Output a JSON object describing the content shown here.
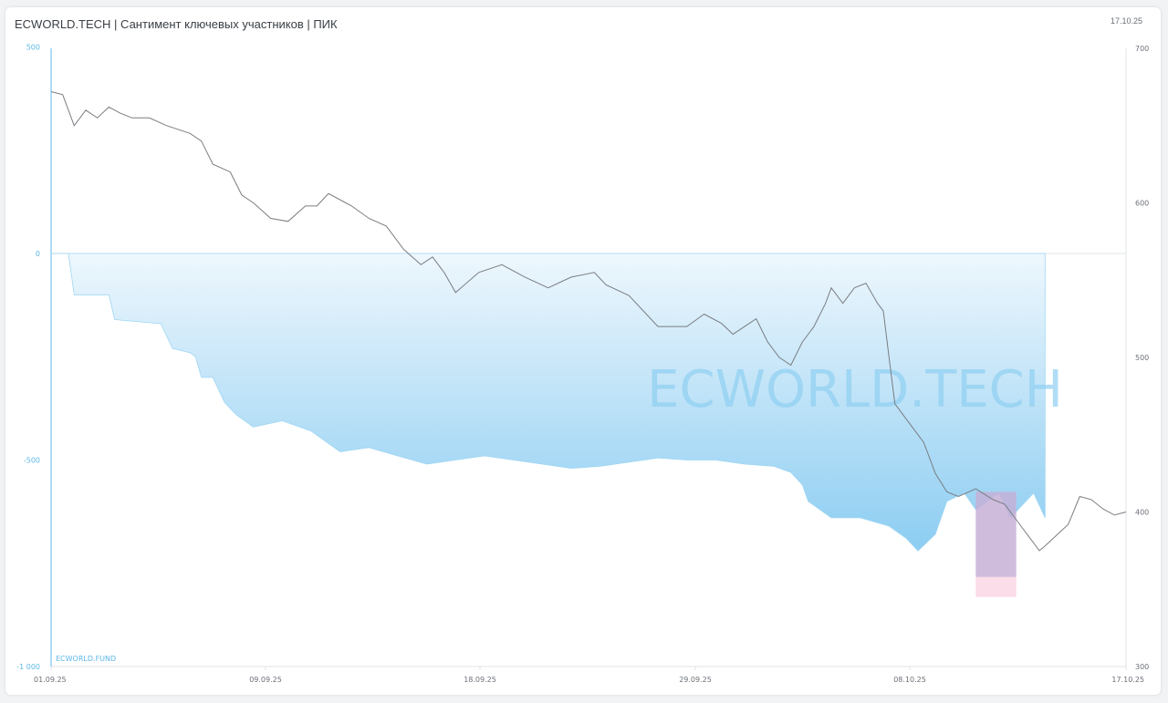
{
  "header": {
    "title": "ECWORLD.TECH | Сантимент ключевых участников | ПИК",
    "date": "17.10.25"
  },
  "watermark": "ECWORLD.TECH",
  "source_label": "ECWORLD.FUND",
  "colors": {
    "left_axis": "#5bb8e8",
    "area_fill_top": "#e9f5fc",
    "area_fill_bottom": "#8ccdf2",
    "price_line": "#7a7d82",
    "watermark": "#8fd0f2",
    "highlight_blue": "#b3a6d6",
    "highlight_pink": "#f6c6da"
  },
  "chart_data": {
    "type": "line",
    "title": "ECWORLD.TECH | Сантимент ключевых участников | ПИК",
    "x_ticks": [
      "01.09.25",
      "09.09.25",
      "18.09.25",
      "29.09.25",
      "08.10.25",
      "17.10.25"
    ],
    "y_left": {
      "ticks": [
        "500",
        "0",
        "-500",
        "-1 000"
      ],
      "range": [
        -1000,
        500
      ]
    },
    "y_right": {
      "ticks": [
        "700",
        "600",
        "500",
        "400",
        "300"
      ],
      "range": [
        300,
        700
      ]
    },
    "grid": false,
    "series": [
      {
        "kind": "area",
        "axis": "left",
        "points": [
          [
            0,
            0
          ],
          [
            3,
            0
          ],
          [
            4,
            -100
          ],
          [
            10,
            -100
          ],
          [
            11,
            -160
          ],
          [
            19,
            -170
          ],
          [
            20,
            -200
          ],
          [
            21,
            -230
          ],
          [
            24,
            -240
          ],
          [
            25,
            -250
          ],
          [
            26,
            -300
          ],
          [
            28,
            -300
          ],
          [
            30,
            -360
          ],
          [
            32,
            -390
          ],
          [
            35,
            -420
          ],
          [
            40,
            -405
          ],
          [
            45,
            -430
          ],
          [
            50,
            -480
          ],
          [
            55,
            -470
          ],
          [
            60,
            -490
          ],
          [
            65,
            -510
          ],
          [
            70,
            -500
          ],
          [
            75,
            -490
          ],
          [
            80,
            -500
          ],
          [
            85,
            -510
          ],
          [
            90,
            -520
          ],
          [
            95,
            -515
          ],
          [
            100,
            -505
          ],
          [
            105,
            -495
          ],
          [
            110,
            -500
          ],
          [
            115,
            -500
          ],
          [
            120,
            -510
          ],
          [
            125,
            -515
          ],
          [
            128,
            -530
          ],
          [
            130,
            -560
          ],
          [
            131,
            -600
          ],
          [
            135,
            -640
          ],
          [
            140,
            -640
          ],
          [
            145,
            -660
          ],
          [
            148,
            -690
          ],
          [
            150,
            -720
          ],
          [
            153,
            -680
          ],
          [
            155,
            -600
          ],
          [
            158,
            -580
          ],
          [
            160,
            -620
          ],
          [
            164,
            -580
          ],
          [
            166,
            -640
          ],
          [
            170,
            -580
          ],
          [
            172,
            -640
          ]
        ]
      },
      {
        "kind": "line",
        "axis": "right",
        "points": [
          [
            0,
            672
          ],
          [
            2,
            670
          ],
          [
            4,
            650
          ],
          [
            6,
            660
          ],
          [
            8,
            655
          ],
          [
            10,
            662
          ],
          [
            12,
            658
          ],
          [
            14,
            655
          ],
          [
            17,
            655
          ],
          [
            20,
            650
          ],
          [
            24,
            645
          ],
          [
            26,
            640
          ],
          [
            28,
            625
          ],
          [
            31,
            620
          ],
          [
            33,
            605
          ],
          [
            35,
            600
          ],
          [
            38,
            590
          ],
          [
            41,
            588
          ],
          [
            44,
            598
          ],
          [
            46,
            598
          ],
          [
            48,
            606
          ],
          [
            52,
            598
          ],
          [
            55,
            590
          ],
          [
            58,
            585
          ],
          [
            61,
            570
          ],
          [
            64,
            560
          ],
          [
            66,
            565
          ],
          [
            68,
            555
          ],
          [
            70,
            542
          ],
          [
            74,
            555
          ],
          [
            78,
            560
          ],
          [
            82,
            552
          ],
          [
            86,
            545
          ],
          [
            90,
            552
          ],
          [
            94,
            555
          ],
          [
            96,
            547
          ],
          [
            100,
            540
          ],
          [
            105,
            520
          ],
          [
            110,
            520
          ],
          [
            113,
            528
          ],
          [
            116,
            522
          ],
          [
            118,
            515
          ],
          [
            120,
            520
          ],
          [
            122,
            525
          ],
          [
            124,
            510
          ],
          [
            126,
            500
          ],
          [
            128,
            495
          ],
          [
            130,
            510
          ],
          [
            132,
            520
          ],
          [
            134,
            535
          ],
          [
            135,
            545
          ],
          [
            137,
            535
          ],
          [
            139,
            545
          ],
          [
            141,
            548
          ],
          [
            143,
            535
          ],
          [
            144,
            530
          ],
          [
            145,
            500
          ],
          [
            146,
            470
          ],
          [
            148,
            460
          ],
          [
            151,
            445
          ],
          [
            153,
            425
          ],
          [
            155,
            413
          ],
          [
            157,
            410
          ],
          [
            160,
            415
          ],
          [
            163,
            408
          ],
          [
            165,
            405
          ],
          [
            167,
            395
          ],
          [
            169,
            385
          ],
          [
            170,
            380
          ],
          [
            171,
            375
          ],
          [
            172,
            378
          ],
          [
            174,
            385
          ],
          [
            176,
            392
          ],
          [
            178,
            410
          ],
          [
            180,
            408
          ],
          [
            182,
            402
          ],
          [
            184,
            398
          ],
          [
            186,
            400
          ]
        ]
      }
    ],
    "highlight_regions": [
      {
        "x": [
          160,
          167
        ],
        "color": "blue"
      },
      {
        "x": [
          160,
          167
        ],
        "color": "pink"
      }
    ]
  }
}
